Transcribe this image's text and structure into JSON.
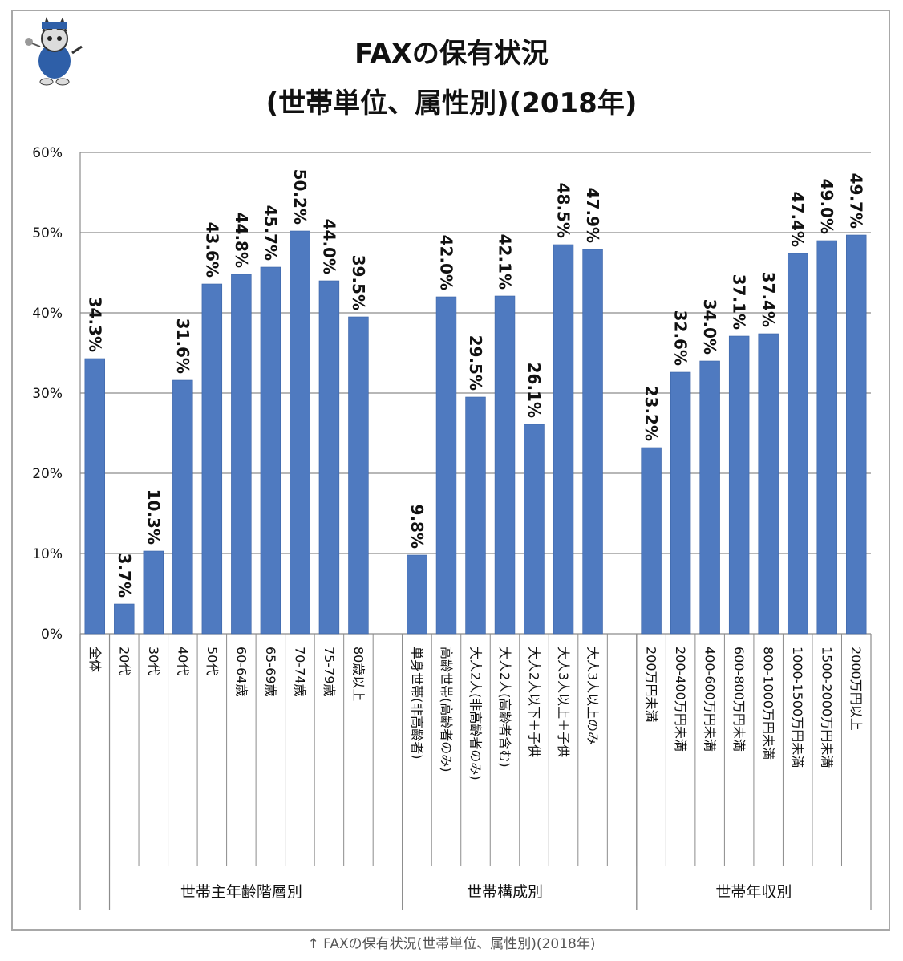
{
  "page": {
    "caption": "↑ FAXの保有状況(世帯単位、属性別)(2018年)"
  },
  "colors": {
    "bar": "#4f7ac0",
    "bar_edge": "#3b63a6",
    "grid": "#8c8c8c",
    "text": "#111111"
  },
  "icons": {
    "mascot": "cat-mascot-icon"
  },
  "chart_data": {
    "type": "bar",
    "title": "FAXの保有状況",
    "subtitle": "(世帯単位、属性別)(2018年)",
    "xlabel": "",
    "ylabel": "",
    "ylim": [
      0,
      60
    ],
    "yticks": [
      "0%",
      "10%",
      "20%",
      "30%",
      "40%",
      "50%",
      "60%"
    ],
    "grid": true,
    "legend": "none",
    "categories": [
      "全体",
      "20代",
      "30代",
      "40代",
      "50代",
      "60-64歳",
      "65-69歳",
      "70-74歳",
      "75-79歳",
      "80歳以上",
      "",
      "単身世帯(非高齢者)",
      "高齢世帯(高齢者のみ)",
      "大人2人(非高齢者のみ)",
      "大人2人(高齢者含む)",
      "大人2人以下＋子供",
      "大人3人以上＋子供",
      "大人3人以上のみ",
      "",
      "200万円未満",
      "200-400万円未満",
      "400-600万円未満",
      "600-800万円未満",
      "800-1000万円未満",
      "1000-1500万円未満",
      "1500-2000万円未満",
      "2000万円以上"
    ],
    "values": [
      34.3,
      3.7,
      10.3,
      31.6,
      43.6,
      44.8,
      45.7,
      50.2,
      44.0,
      39.5,
      null,
      9.8,
      42.0,
      29.5,
      42.1,
      26.1,
      48.5,
      47.9,
      null,
      23.2,
      32.6,
      34.0,
      37.1,
      37.4,
      47.4,
      49.0,
      49.7
    ],
    "data_labels": [
      "34.3%",
      "3.7%",
      "10.3%",
      "31.6%",
      "43.6%",
      "44.8%",
      "45.7%",
      "50.2%",
      "44.0%",
      "39.5%",
      "",
      "9.8%",
      "42.0%",
      "29.5%",
      "42.1%",
      "26.1%",
      "48.5%",
      "47.9%",
      "",
      "23.2%",
      "32.6%",
      "34.0%",
      "37.1%",
      "37.4%",
      "47.4%",
      "49.0%",
      "49.7%"
    ],
    "groups": [
      {
        "label": "",
        "first": 0,
        "last": 0
      },
      {
        "label": "世帯主年齢階層別",
        "first": 1,
        "last": 9
      },
      {
        "label": "世帯構成別",
        "first": 11,
        "last": 17
      },
      {
        "label": "世帯年収別",
        "first": 19,
        "last": 26
      }
    ]
  }
}
